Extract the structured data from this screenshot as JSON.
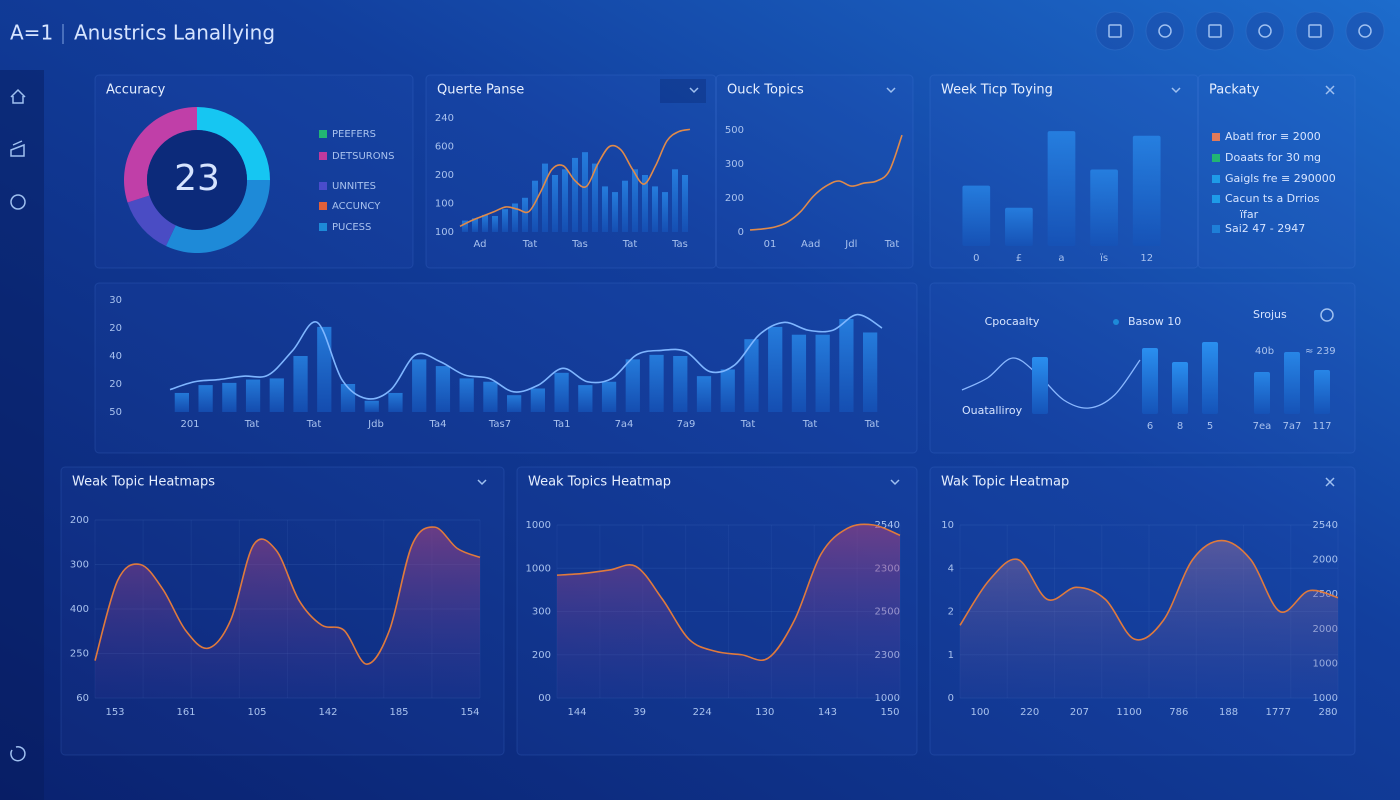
{
  "header": {
    "logo": "A=1",
    "title": "Anustrics Lanallying"
  },
  "panels": [
    {
      "title": "Accuracy",
      "center": "23",
      "donut": [
        {
          "value": 25,
          "color": "#16c6f2"
        },
        {
          "value": 32,
          "color": "#1e8ad8"
        },
        {
          "value": 13,
          "color": "#4a4cc4"
        },
        {
          "value": 30,
          "color": "#c03fa8"
        }
      ],
      "legend": [
        {
          "label": "PEEFERS",
          "color": "#22b573"
        },
        {
          "label": "DETSURONS",
          "color": "#c0399e"
        },
        {
          "label": "UNNITES",
          "color": "#4a4ccc"
        },
        {
          "label": "ACCUNCY",
          "color": "#e0603a"
        },
        {
          "label": "PUCESS",
          "color": "#1d8ad8"
        }
      ]
    },
    {
      "title": "Querte Panse",
      "y_labels": [
        "240",
        "600",
        "200",
        "100",
        "100"
      ],
      "x_labels": [
        "Ad",
        "Tat",
        "Tas",
        "Tat",
        "Tas"
      ],
      "bars": [
        10,
        12,
        15,
        14,
        20,
        25,
        30,
        45,
        60,
        50,
        55,
        65,
        70,
        60,
        40,
        35,
        45,
        55,
        50,
        40,
        35,
        55,
        50
      ],
      "line": [
        5,
        10,
        14,
        18,
        22,
        20,
        18,
        35,
        55,
        58,
        45,
        40,
        60,
        75,
        72,
        55,
        42,
        58,
        80,
        88,
        90
      ]
    },
    {
      "title": "Ouck Topics",
      "y_labels": [
        "500",
        "300",
        "200",
        "0"
      ],
      "x_labels": [
        "01",
        "Aad",
        "Jdl",
        "Tat"
      ],
      "line": [
        2,
        3,
        5,
        10,
        20,
        35,
        45,
        50,
        45,
        48,
        50,
        60,
        95
      ]
    },
    {
      "title": "Week Ticp Toying",
      "x_labels": [
        "0",
        "£",
        "a",
        "ïs",
        "12"
      ],
      "bars": [
        52,
        33,
        99,
        66,
        95
      ]
    },
    {
      "title": "Packaty",
      "legend": [
        {
          "label": "Abatl fror ≡ 2000",
          "color": "#e07a5a"
        },
        {
          "label": "Doaats for 30 mg",
          "color": "#22b573"
        },
        {
          "label": "Gaigls fre ≡ 290000",
          "color": "#1e9be8"
        },
        {
          "label": "Cacun ts a Drrios",
          "color": "#1e9be8"
        },
        {
          "label": "ïfar"
        },
        {
          "label": "Sai2 47 - 2947",
          "color": "#1e7fd8"
        }
      ]
    },
    {
      "y_labels": [
        "30",
        "20",
        "40",
        "20",
        "50"
      ],
      "x_labels": [
        "201",
        "Tat",
        "Tat",
        "Jdb",
        "Ta4",
        "Tas7",
        "Ta1",
        "7a4",
        "7a9",
        "Tat",
        "Tat",
        "Tat"
      ],
      "line": [
        20,
        27,
        29,
        32,
        33,
        55,
        80,
        29,
        12,
        20,
        51,
        45,
        33,
        30,
        18,
        24,
        39,
        27,
        30,
        51,
        55,
        54,
        36,
        42,
        69,
        80,
        73,
        73,
        87,
        75
      ],
      "bars": [
        17,
        24,
        26,
        29,
        30,
        50,
        76,
        25,
        10,
        17,
        47,
        41,
        30,
        27,
        15,
        21,
        35,
        24,
        27,
        47,
        51,
        50,
        32,
        38,
        65,
        76,
        69,
        69,
        83,
        71
      ]
    },
    {
      "title": "Cpocaalty",
      "legend": "Basow 10",
      "right_title": "Srojus",
      "bottom_label": "Ouatalliroy",
      "note_left": "40b",
      "note_right": "≈ 239",
      "line": [
        24,
        36,
        56,
        39,
        14,
        6,
        19,
        54
      ],
      "bars": [
        57,
        66,
        52,
        72
      ],
      "x_labels": [
        "6",
        "8",
        "5"
      ],
      "bars_b": [
        42,
        62,
        44
      ],
      "x_labels_b": [
        "7ea",
        "7a7",
        "117"
      ]
    },
    {
      "title": "Weak Topic Heatmaps",
      "y_labels": [
        "200",
        "300",
        "400",
        "250",
        "60"
      ],
      "x_labels": [
        "153",
        "161",
        "105",
        "142",
        "185",
        "154"
      ],
      "line": [
        21,
        66,
        75,
        61,
        38,
        28,
        44,
        86,
        83,
        55,
        41,
        38,
        19,
        38,
        86,
        96,
        84,
        79
      ]
    },
    {
      "title": "Weak Topics Heatmap",
      "y_labels": [
        "1000",
        "1000",
        "300",
        "200",
        "00"
      ],
      "y2_labels": [
        "2540",
        "2300",
        "2500",
        "2300",
        "1000"
      ],
      "x_labels": [
        "144",
        "39",
        "224",
        "130",
        "143",
        "150"
      ],
      "line": [
        71,
        72,
        74,
        76,
        57,
        34,
        27,
        25,
        23,
        45,
        83,
        98,
        100,
        94
      ]
    },
    {
      "title": "Wak Topic Heatmap",
      "y_labels": [
        "10",
        "4",
        "2",
        "1",
        "0"
      ],
      "y2_labels": [
        "2540",
        "2000",
        "2500",
        "2000",
        "1000",
        "1000"
      ],
      "x_labels": [
        "100",
        "220",
        "207",
        "1100",
        "786",
        "188",
        "1777",
        "280"
      ],
      "line": [
        42,
        68,
        80,
        57,
        64,
        57,
        34,
        45,
        80,
        91,
        80,
        50,
        62,
        58
      ]
    }
  ]
}
